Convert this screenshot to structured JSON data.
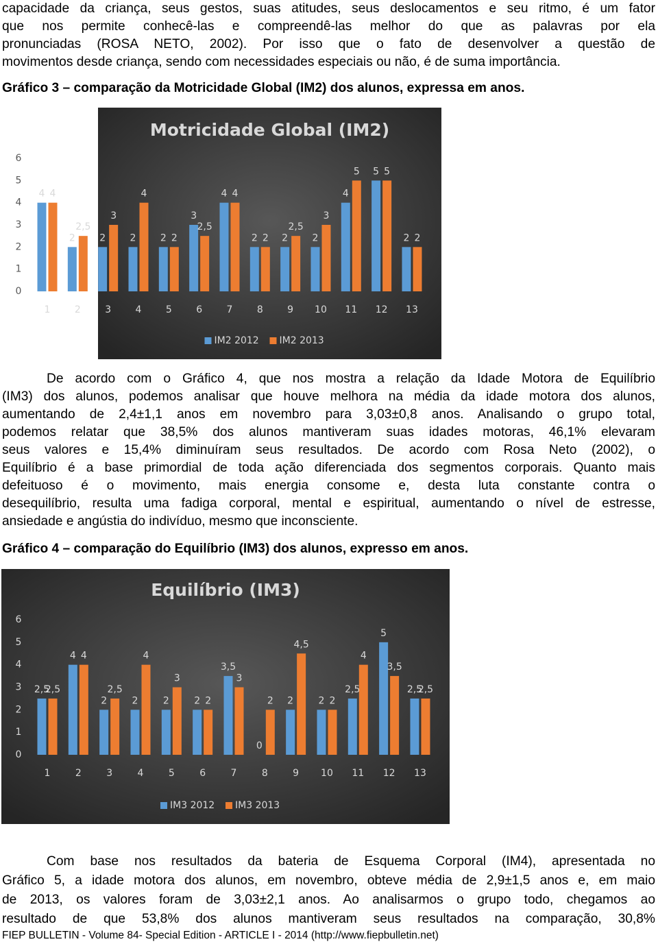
{
  "text": {
    "para_1": [
      "capacidade da criança, seus gestos, suas atitudes, seus deslocamentos e seu ritmo, é um fator",
      "que nos permite conhecê-las e compreendê-las melhor do que as palavras por ela",
      "pronunciadas (ROSA NETO, 2002). Por isso que o fato de desenvolver a questão de",
      "movimentos desde criança, sendo com necessidades especiais ou não, é de suma importância."
    ],
    "caption_1": "Gráfico 3 – comparação da Motricidade Global (IM2) dos alunos, expressa em anos.",
    "para_2": [
      "De acordo com o Gráfico 4, que nos mostra a relação da Idade Motora de Equilíbrio",
      "(IM3) dos alunos, podemos analisar que houve melhora na média da idade motora dos alunos,",
      "aumentando de 2,4±1,1 anos em novembro para 3,03±0,8 anos. Analisando o grupo total,",
      "podemos relatar que 38,5% dos alunos mantiveram suas idades motoras, 46,1% elevaram",
      "seus valores e 15,4% diminuíram seus resultados. De acordo com Rosa Neto (2002), o",
      "Equilíbrio é a base primordial de toda ação diferenciada dos segmentos corporais. Quanto mais",
      "defeituoso é o movimento, mais energia consome e, desta luta constante contra o",
      "desequilíbrio, resulta uma fadiga corporal, mental e espiritual, aumentando o nível de estresse,",
      "ansiedade e angústia do indivíduo, mesmo que inconsciente."
    ],
    "caption_2": "Gráfico 4 – comparação do Equilíbrio (IM3) dos alunos, expresso em anos.",
    "para_3": [
      "Com base nos resultados da bateria de Esquema Corporal (IM4), apresentada no",
      "Gráfico 5, a idade motora dos alunos, em novembro, obteve média de 2,9±1,5 anos e, em maio",
      "de 2013, os valores foram de 3,03±2,1 anos. Ao analisarmos o grupo todo, chegamos ao",
      "resultado de que 53,8% dos alunos mantiveram seus resultados na comparação, 30,8%"
    ],
    "footer": "FIEP BULLETIN - Volume 84- Special Edition - ARTICLE I - 2014 (http://www.fiepbulletin.net)"
  },
  "chart_data": [
    {
      "type": "bar",
      "title": "Motricidade Global (IM2)",
      "categories": [
        "1",
        "2",
        "3",
        "4",
        "5",
        "6",
        "7",
        "8",
        "9",
        "10",
        "11",
        "12",
        "13"
      ],
      "series": [
        {
          "name": "IM2 2012",
          "color": "#5b9bd5",
          "values": [
            4,
            2,
            2,
            2,
            2,
            3,
            4,
            2,
            2,
            2,
            4,
            5,
            2
          ],
          "value_labels": [
            "4",
            "2",
            "2",
            "2",
            "2",
            "3",
            "4",
            "2",
            "2",
            "2",
            "4",
            "5",
            "2"
          ]
        },
        {
          "name": "IM2 2013",
          "color": "#ed7d31",
          "values": [
            4,
            2.5,
            3,
            4,
            2,
            2.5,
            4,
            2,
            2.5,
            3,
            5,
            5,
            2
          ],
          "value_labels": [
            "4",
            "2,5",
            "3",
            "4",
            "2",
            "2,5",
            "4",
            "2",
            "2,5",
            "3",
            "5",
            "5",
            "2"
          ]
        }
      ],
      "ylim": [
        0,
        6
      ],
      "yticks": [
        0,
        1,
        2,
        3,
        4,
        5,
        6
      ]
    },
    {
      "type": "bar",
      "title": "Equilíbrio (IM3)",
      "categories": [
        "1",
        "2",
        "3",
        "4",
        "5",
        "6",
        "7",
        "8",
        "9",
        "10",
        "11",
        "12",
        "13"
      ],
      "series": [
        {
          "name": "IM3 2012",
          "color": "#5b9bd5",
          "values": [
            2.5,
            4,
            2,
            2,
            2,
            2,
            3.5,
            0,
            2,
            2,
            2.5,
            5,
            2.5
          ],
          "value_labels": [
            "2,5",
            "4",
            "2",
            "2",
            "2",
            "2",
            "3,5",
            "0",
            "2",
            "2",
            "2,5",
            "5",
            "2,5"
          ]
        },
        {
          "name": "IM3 2013",
          "color": "#ed7d31",
          "values": [
            2.5,
            4,
            2.5,
            4,
            3,
            2,
            3,
            2,
            4.5,
            2,
            4,
            3.5,
            2.5
          ],
          "value_labels": [
            "2,5",
            "4",
            "2,5",
            "4",
            "3",
            "2",
            "3",
            "2",
            "4,5",
            "2",
            "4",
            "3,5",
            "2,5"
          ]
        }
      ],
      "ylim": [
        0,
        6
      ],
      "yticks": [
        0,
        1,
        2,
        3,
        4,
        5,
        6
      ]
    }
  ]
}
